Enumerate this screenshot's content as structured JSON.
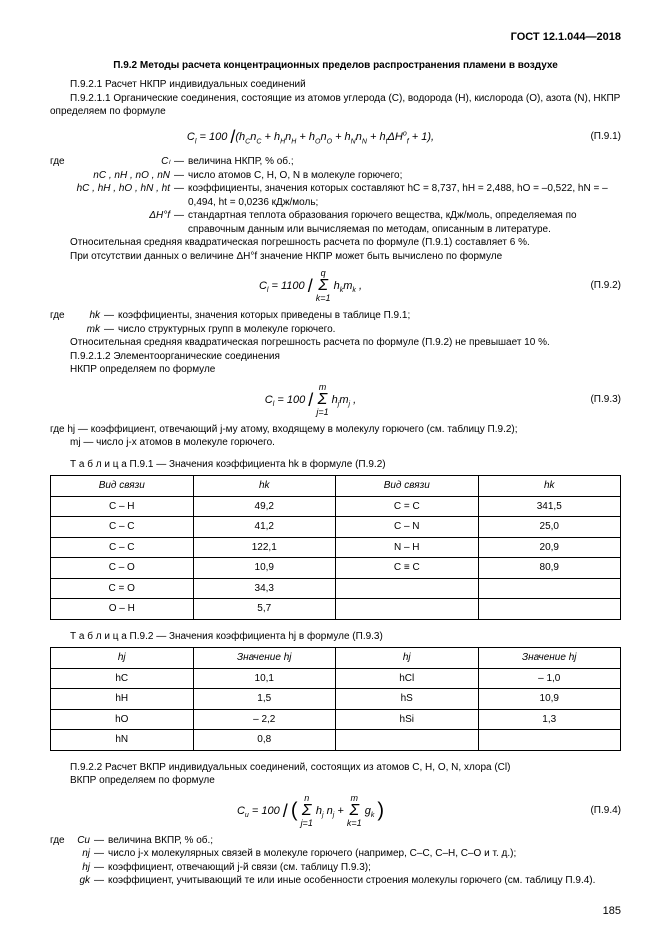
{
  "header": "ГОСТ 12.1.044—2018",
  "section_title": "П.9.2 Методы расчета концентрационных пределов распространения пламени в воздухе",
  "p_9_2_1": "П.9.2.1 Расчет НКПР индивидуальных соединений",
  "p_9_2_1_1": "П.9.2.1.1 Органические соединения, состоящие из атомов углерода (C), водорода (H), кислорода (O), азота (N), НКПР определяем по формуле",
  "eq1_num": "(П.9.1)",
  "gde": "где",
  "w1_sym": "Cₗ",
  "w1_txt": "величина НКПР, % об.;",
  "w2_sym": "nC , nH , nO , nN",
  "w2_txt": "число атомов C, H, O, N в молекуле горючего;",
  "w3_sym": "hC , hH , hO , hN , ht",
  "w3_txt": "коэффициенты, значения которых составляют  hC = 8,737, hH = 2,488, hO = –0,522, hN = –0,494, ht = 0,0236  кДж/моль;",
  "w4_sym": "ΔH°f",
  "w4_txt": "стандартная теплота образования горючего вещества, кДж/моль, определяемая по справочным данным или вычисляемая по методам, описанным в литературе.",
  "p_err1": "Относительная средняя квадратическая погрешность расчета по формуле (П.9.1) составляет 6 %.",
  "p_absent": "При отсутствии данных о величине  ΔH°f  значение НКПР может быть вычислено по формуле",
  "eq2_num": "(П.9.2)",
  "w5_sym": "hk",
  "w5_txt": "коэффициенты, значения которых приведены в таблице П.9.1;",
  "w6_sym": "mk",
  "w6_txt": "число структурных групп в молекуле горючего.",
  "p_err2": "Относительная средняя квадратическая погрешность расчета по формуле (П.9.2) не превышает 10 %.",
  "p_9_2_1_2": "П.9.2.1.2 Элементоорганические соединения",
  "p_nkpr2": "НКПР определяем по формуле",
  "eq3_num": "(П.9.3)",
  "p_hj": "где hj — коэффициент, отвечающий j-му атому, входящему в молекулу горючего (см. таблицу П.9.2);",
  "p_mj": "mj — число j-х атомов в молекуле горючего.",
  "t1_caption": "Т а б л и ц а   П.9.1 — Значения коэффициента hk в формуле (П.9.2)",
  "t1_h1": "Вид связи",
  "t1_h2": "hk",
  "t1_h3": "Вид связи",
  "t1_h4": "hk",
  "t1": [
    [
      "C – H",
      "49,2",
      "C = C",
      "341,5"
    ],
    [
      "C – C",
      "41,2",
      "C – N",
      "25,0"
    ],
    [
      "C – C",
      "122,1",
      "N – H",
      "20,9"
    ],
    [
      "C – O",
      "10,9",
      "C ≡ C",
      "80,9"
    ],
    [
      "C = O",
      "34,3",
      "",
      ""
    ],
    [
      "O – H",
      "5,7",
      "",
      ""
    ]
  ],
  "t2_caption": "Т а б л и ц а   П.9.2 — Значения коэффициента hj в формуле (П.9.3)",
  "t2_h1": "hj",
  "t2_h2": "Значение hj",
  "t2_h3": "hj",
  "t2_h4": "Значение hj",
  "t2": [
    [
      "hC",
      "10,1",
      "hCl",
      "– 1,0"
    ],
    [
      "hH",
      "1,5",
      "hS",
      "10,9"
    ],
    [
      "hO",
      "– 2,2",
      "hSi",
      "1,3"
    ],
    [
      "hN",
      "0,8",
      "",
      ""
    ]
  ],
  "p_9_2_2": "П.9.2.2 Расчет ВКПР индивидуальных соединений, состоящих из атомов C, H, O, N, хлора (Cl)",
  "p_vkpr": "ВКПР определяем по формуле",
  "eq4_num": "(П.9.4)",
  "w7_sym": "Cu",
  "w7_txt": "величина ВКПР, % об.;",
  "w8_sym": "nj",
  "w8_txt": "число j-х молекулярных связей в молекуле горючего (например, C–C, C–H, C–O и т. д.);",
  "w9_sym": "hj",
  "w9_txt": "коэффициент, отвечающий j-й связи (см. таблицу П.9.3);",
  "w10_sym": "gk",
  "w10_txt": "коэффициент, учитывающий те или иные особенности строения молекулы горючего (см. таблицу П.9.4).",
  "pagenum": "185"
}
